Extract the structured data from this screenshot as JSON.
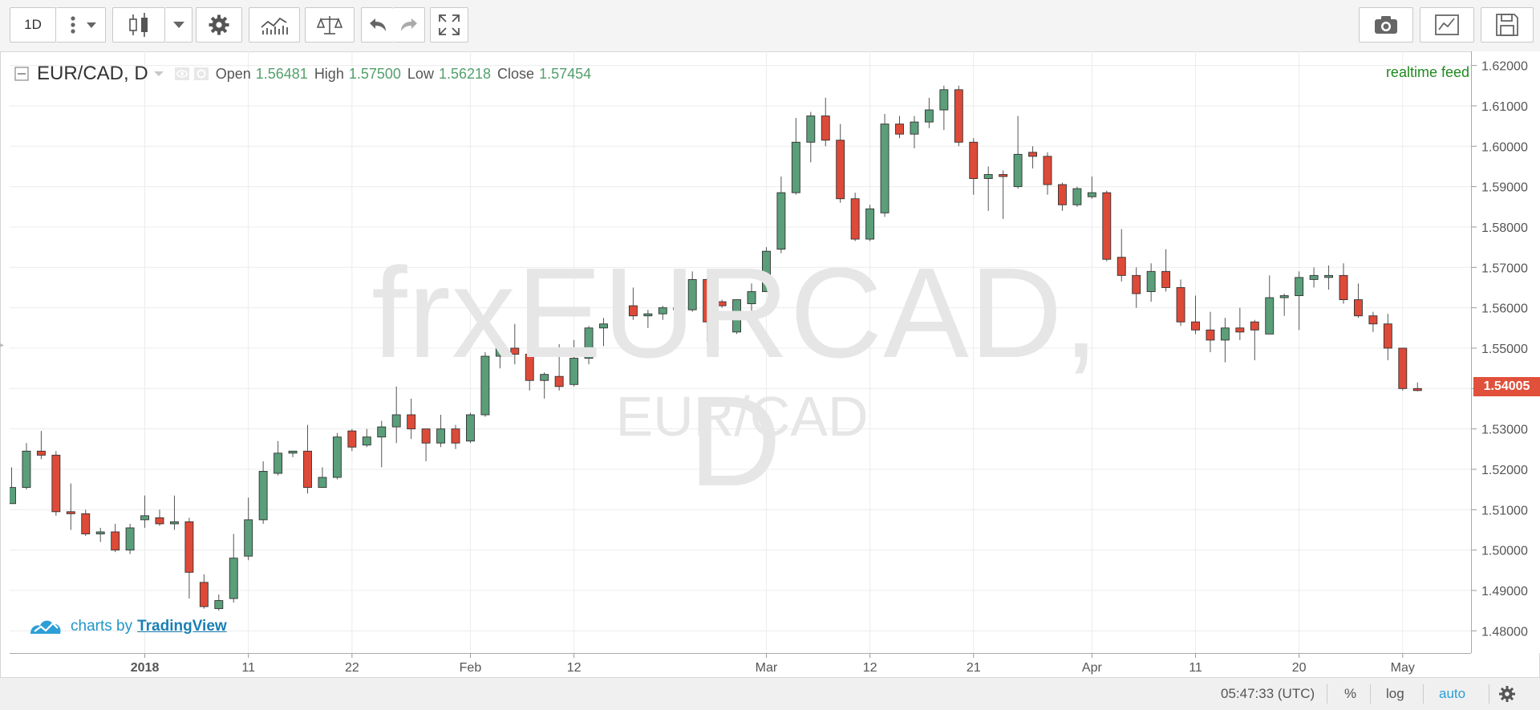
{
  "toolbar": {
    "interval": "1D",
    "icons": [
      "more-vertical-icon",
      "chevron-down-icon",
      "candles-icon",
      "chevron-down-icon",
      "gear-icon",
      "indicators-icon",
      "compare-scale-icon",
      "undo-icon",
      "redo-icon",
      "fullscreen-icon",
      "camera-icon",
      "chart-properties-icon",
      "save-icon"
    ]
  },
  "legend": {
    "symbol": "EUR/CAD, D",
    "open_label": "Open",
    "open": "1.56481",
    "high_label": "High",
    "high": "1.57500",
    "low_label": "Low",
    "low": "1.56218",
    "close_label": "Close",
    "close": "1.57454"
  },
  "realtime": "realtime feed",
  "watermark": {
    "main": "frxEURCAD, D",
    "sub": "EUR/CAD"
  },
  "brand": {
    "prefix": "charts by",
    "link": "TradingView"
  },
  "price_tag": "1.54005",
  "bottom": {
    "time": "05:47:33 (UTC)",
    "percent": "%",
    "log": "log",
    "auto": "auto"
  },
  "colors": {
    "up": "#5a9e7a",
    "down": "#de4a38",
    "accent": "#2196c9"
  },
  "chart_data": {
    "type": "candlestick",
    "symbol": "EUR/CAD",
    "timeframe": "D",
    "y_ticks": [
      "1.62000",
      "1.61000",
      "1.60000",
      "1.59000",
      "1.58000",
      "1.57000",
      "1.56000",
      "1.55000",
      "1.54000",
      "1.53000",
      "1.52000",
      "1.51000",
      "1.50000",
      "1.49000",
      "1.48000"
    ],
    "ylim": [
      1.4745,
      1.6235
    ],
    "x_ticks": [
      {
        "i": 9,
        "label": "2018",
        "bold": true
      },
      {
        "i": 16,
        "label": "11"
      },
      {
        "i": 23,
        "label": "22"
      },
      {
        "i": 31,
        "label": "Feb"
      },
      {
        "i": 38,
        "label": "12"
      },
      {
        "i": 51,
        "label": "Mar"
      },
      {
        "i": 58,
        "label": "12"
      },
      {
        "i": 65,
        "label": "21"
      },
      {
        "i": 73,
        "label": "Apr"
      },
      {
        "i": 80,
        "label": "11"
      },
      {
        "i": 87,
        "label": "20"
      },
      {
        "i": 94,
        "label": "May"
      }
    ],
    "candles": [
      [
        1.5115,
        1.5155,
        1.5115,
        1.5205
      ],
      [
        1.5155,
        1.5245,
        1.515,
        1.5265
      ],
      [
        1.5245,
        1.5235,
        1.5225,
        1.5295
      ],
      [
        1.5235,
        1.5095,
        1.5085,
        1.5245
      ],
      [
        1.5095,
        1.509,
        1.505,
        1.5165
      ],
      [
        1.509,
        1.504,
        1.5035,
        1.51
      ],
      [
        1.504,
        1.5045,
        1.502,
        1.5055
      ],
      [
        1.5045,
        1.5,
        1.4995,
        1.5065
      ],
      [
        1.5,
        1.5055,
        1.499,
        1.5065
      ],
      [
        1.5075,
        1.5085,
        1.5055,
        1.5135
      ],
      [
        1.508,
        1.5065,
        1.506,
        1.51
      ],
      [
        1.5065,
        1.507,
        1.505,
        1.5135
      ],
      [
        1.507,
        1.4945,
        1.488,
        1.508
      ],
      [
        1.492,
        1.486,
        1.4855,
        1.494
      ],
      [
        1.4855,
        1.4875,
        1.485,
        1.489
      ],
      [
        1.488,
        1.498,
        1.487,
        1.504
      ],
      [
        1.4985,
        1.5075,
        1.4975,
        1.513
      ],
      [
        1.5075,
        1.5195,
        1.5065,
        1.522
      ],
      [
        1.519,
        1.524,
        1.5185,
        1.527
      ],
      [
        1.524,
        1.5245,
        1.523,
        1.5245
      ],
      [
        1.5245,
        1.5155,
        1.514,
        1.531
      ],
      [
        1.5155,
        1.518,
        1.5155,
        1.5205
      ],
      [
        1.518,
        1.528,
        1.5175,
        1.529
      ],
      [
        1.5295,
        1.5255,
        1.5245,
        1.53
      ],
      [
        1.526,
        1.528,
        1.5255,
        1.53
      ],
      [
        1.528,
        1.5305,
        1.5205,
        1.532
      ],
      [
        1.5305,
        1.5335,
        1.5265,
        1.5405
      ],
      [
        1.5335,
        1.53,
        1.5275,
        1.5375
      ],
      [
        1.53,
        1.5265,
        1.522,
        1.53
      ],
      [
        1.5265,
        1.53,
        1.5255,
        1.5335
      ],
      [
        1.53,
        1.5265,
        1.525,
        1.531
      ],
      [
        1.527,
        1.5335,
        1.5265,
        1.534
      ],
      [
        1.5335,
        1.548,
        1.533,
        1.549
      ],
      [
        1.548,
        1.55,
        1.545,
        1.5515
      ],
      [
        1.55,
        1.5485,
        1.546,
        1.556
      ],
      [
        1.5485,
        1.542,
        1.5395,
        1.55
      ],
      [
        1.542,
        1.5435,
        1.5375,
        1.544
      ],
      [
        1.543,
        1.5405,
        1.5395,
        1.551
      ],
      [
        1.541,
        1.5475,
        1.5405,
        1.552
      ],
      [
        1.5475,
        1.555,
        1.546,
        1.5555
      ],
      [
        1.555,
        1.556,
        1.5505,
        1.5575
      ],
      [
        1.556,
        1.5605,
        1.5555,
        1.5645
      ],
      [
        1.5605,
        1.558,
        1.557,
        1.565
      ],
      [
        1.558,
        1.5585,
        1.555,
        1.5595
      ],
      [
        1.5585,
        1.56,
        1.557,
        1.5605
      ],
      [
        1.56,
        1.5595,
        1.559,
        1.561
      ],
      [
        1.5595,
        1.567,
        1.559,
        1.569
      ],
      [
        1.567,
        1.5565,
        1.5515,
        1.5675
      ],
      [
        1.5615,
        1.5605,
        1.56,
        1.562
      ],
      [
        1.554,
        1.562,
        1.5535,
        1.562
      ],
      [
        1.561,
        1.564,
        1.559,
        1.566
      ],
      [
        1.564,
        1.574,
        1.564,
        1.575
      ],
      [
        1.5745,
        1.5885,
        1.5735,
        1.5925
      ],
      [
        1.5885,
        1.601,
        1.588,
        1.607
      ],
      [
        1.601,
        1.6075,
        1.596,
        1.6085
      ],
      [
        1.6075,
        1.6015,
        1.6,
        1.612
      ],
      [
        1.6015,
        1.587,
        1.586,
        1.6055
      ],
      [
        1.587,
        1.577,
        1.5765,
        1.5885
      ],
      [
        1.577,
        1.5845,
        1.5765,
        1.5855
      ],
      [
        1.5835,
        1.6055,
        1.5825,
        1.608
      ],
      [
        1.6055,
        1.603,
        1.602,
        1.6075
      ],
      [
        1.603,
        1.606,
        1.5995,
        1.6075
      ],
      [
        1.606,
        1.609,
        1.6045,
        1.612
      ],
      [
        1.609,
        1.614,
        1.604,
        1.615
      ],
      [
        1.614,
        1.601,
        1.6,
        1.615
      ],
      [
        1.601,
        1.592,
        1.588,
        1.602
      ],
      [
        1.592,
        1.593,
        1.584,
        1.595
      ],
      [
        1.593,
        1.5925,
        1.582,
        1.594
      ],
      [
        1.59,
        1.598,
        1.5895,
        1.6075
      ],
      [
        1.5985,
        1.5975,
        1.5945,
        1.6
      ],
      [
        1.5975,
        1.5905,
        1.588,
        1.5985
      ],
      [
        1.5905,
        1.5855,
        1.584,
        1.591
      ],
      [
        1.5855,
        1.5895,
        1.585,
        1.59
      ],
      [
        1.5875,
        1.5885,
        1.587,
        1.5925
      ],
      [
        1.5885,
        1.572,
        1.5715,
        1.589
      ],
      [
        1.5725,
        1.568,
        1.5665,
        1.5795
      ],
      [
        1.568,
        1.5635,
        1.56,
        1.57
      ],
      [
        1.564,
        1.569,
        1.5615,
        1.571
      ],
      [
        1.569,
        1.565,
        1.564,
        1.5745
      ],
      [
        1.565,
        1.5565,
        1.5555,
        1.567
      ],
      [
        1.5565,
        1.5545,
        1.5535,
        1.563
      ],
      [
        1.5545,
        1.552,
        1.549,
        1.559
      ],
      [
        1.552,
        1.555,
        1.5465,
        1.5575
      ],
      [
        1.555,
        1.554,
        1.552,
        1.56
      ],
      [
        1.5565,
        1.5545,
        1.547,
        1.557
      ],
      [
        1.5535,
        1.5625,
        1.5535,
        1.568
      ],
      [
        1.5625,
        1.563,
        1.558,
        1.5635
      ],
      [
        1.563,
        1.5675,
        1.5545,
        1.569
      ],
      [
        1.567,
        1.568,
        1.565,
        1.57
      ],
      [
        1.5675,
        1.568,
        1.5645,
        1.5705
      ],
      [
        1.568,
        1.562,
        1.561,
        1.571
      ],
      [
        1.562,
        1.558,
        1.5575,
        1.566
      ],
      [
        1.558,
        1.556,
        1.554,
        1.559
      ],
      [
        1.556,
        1.55,
        1.547,
        1.5585
      ],
      [
        1.55,
        1.54,
        1.5395,
        1.55
      ],
      [
        1.54,
        1.5395,
        1.5393,
        1.5415
      ]
    ]
  }
}
